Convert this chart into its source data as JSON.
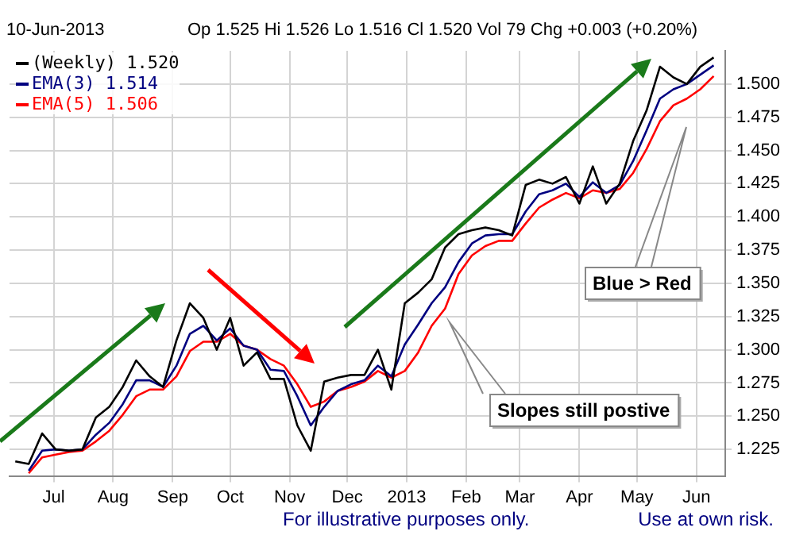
{
  "chart_data": {
    "type": "line",
    "title": "10-Jun-2013",
    "subtitle": "Op 1.525 Hi 1.526 Lo 1.516 Cl 1.520 Vol 79 Chg +0.003 (+0.20%)",
    "x": [
      "2012-06-11",
      "2012-06-18",
      "2012-06-25",
      "2012-07-02",
      "2012-07-09",
      "2012-07-16",
      "2012-07-23",
      "2012-07-30",
      "2012-08-06",
      "2012-08-13",
      "2012-08-20",
      "2012-08-27",
      "2012-09-03",
      "2012-09-10",
      "2012-09-17",
      "2012-09-24",
      "2012-10-01",
      "2012-10-08",
      "2012-10-15",
      "2012-10-22",
      "2012-10-29",
      "2012-11-05",
      "2012-11-12",
      "2012-11-19",
      "2012-11-26",
      "2012-12-03",
      "2012-12-10",
      "2012-12-17",
      "2012-12-24",
      "2012-12-31",
      "2013-01-07",
      "2013-01-14",
      "2013-01-21",
      "2013-01-28",
      "2013-02-04",
      "2013-02-11",
      "2013-02-18",
      "2013-02-25",
      "2013-03-04",
      "2013-03-11",
      "2013-03-18",
      "2013-03-25",
      "2013-04-01",
      "2013-04-08",
      "2013-04-15",
      "2013-04-22",
      "2013-04-29",
      "2013-05-06",
      "2013-05-13",
      "2013-05-20",
      "2013-05-27",
      "2013-06-03",
      "2013-06-10"
    ],
    "series": [
      {
        "name": "(Weekly) 1.520",
        "color": "#000000",
        "values": [
          1.216,
          1.214,
          1.237,
          1.225,
          1.224,
          1.225,
          1.249,
          1.257,
          1.272,
          1.292,
          1.28,
          1.272,
          1.307,
          1.335,
          1.324,
          1.3,
          1.324,
          1.288,
          1.298,
          1.278,
          1.278,
          1.243,
          1.224,
          1.276,
          1.279,
          1.281,
          1.281,
          1.3,
          1.27,
          1.335,
          1.343,
          1.353,
          1.377,
          1.387,
          1.39,
          1.392,
          1.39,
          1.386,
          1.424,
          1.428,
          1.425,
          1.43,
          1.41,
          1.438,
          1.41,
          1.425,
          1.457,
          1.48,
          1.513,
          1.505,
          1.5,
          1.513,
          1.52
        ]
      },
      {
        "name": "EMA(3) 1.514",
        "color": "#000080",
        "values": [
          null,
          1.209,
          1.224,
          1.225,
          1.224,
          1.225,
          1.236,
          1.245,
          1.259,
          1.277,
          1.277,
          1.272,
          1.288,
          1.312,
          1.318,
          1.307,
          1.316,
          1.303,
          1.3,
          1.285,
          1.284,
          1.265,
          1.243,
          1.257,
          1.269,
          1.274,
          1.277,
          1.288,
          1.28,
          1.304,
          1.319,
          1.335,
          1.347,
          1.366,
          1.38,
          1.386,
          1.387,
          1.387,
          1.404,
          1.417,
          1.42,
          1.425,
          1.415,
          1.426,
          1.418,
          1.424,
          1.442,
          1.465,
          1.489,
          1.496,
          1.5,
          1.507,
          1.514
        ]
      },
      {
        "name": "EMA(5) 1.506",
        "color": "#ff0000",
        "values": [
          null,
          1.207,
          1.219,
          1.221,
          1.223,
          1.224,
          1.231,
          1.239,
          1.251,
          1.265,
          1.27,
          1.27,
          1.28,
          1.299,
          1.306,
          1.306,
          1.312,
          1.303,
          1.3,
          1.293,
          1.288,
          1.274,
          1.257,
          1.261,
          1.269,
          1.272,
          1.276,
          1.284,
          1.279,
          1.284,
          1.298,
          1.318,
          1.331,
          1.357,
          1.371,
          1.378,
          1.382,
          1.382,
          1.395,
          1.407,
          1.413,
          1.418,
          1.414,
          1.42,
          1.418,
          1.421,
          1.433,
          1.451,
          1.472,
          1.484,
          1.489,
          1.496,
          1.506
        ]
      }
    ],
    "xlim": [
      "2012-06-08",
      "2013-06-16"
    ],
    "xticks": [
      {
        "value": "2012-07-01",
        "label": "Jul"
      },
      {
        "value": "2012-08-01",
        "label": "Aug"
      },
      {
        "value": "2012-09-01",
        "label": "Sep"
      },
      {
        "value": "2012-10-01",
        "label": "Oct"
      },
      {
        "value": "2012-11-01",
        "label": "Nov"
      },
      {
        "value": "2012-12-01",
        "label": "Dec"
      },
      {
        "value": "2013-01-01",
        "label": "2013"
      },
      {
        "value": "2013-02-01",
        "label": "Feb"
      },
      {
        "value": "2013-03-01",
        "label": "Mar"
      },
      {
        "value": "2013-04-01",
        "label": "Apr"
      },
      {
        "value": "2013-05-01",
        "label": "May"
      },
      {
        "value": "2013-06-01",
        "label": "Jun"
      }
    ],
    "ylim": [
      1.205,
      1.525
    ],
    "yticks": [
      {
        "value": 1.225,
        "label": "1.225"
      },
      {
        "value": 1.25,
        "label": "1.250"
      },
      {
        "value": 1.275,
        "label": "1.275"
      },
      {
        "value": 1.3,
        "label": "1.300"
      },
      {
        "value": 1.325,
        "label": "1.325"
      },
      {
        "value": 1.35,
        "label": "1.350"
      },
      {
        "value": 1.375,
        "label": "1.375"
      },
      {
        "value": 1.4,
        "label": "1.400"
      },
      {
        "value": 1.425,
        "label": "1.425"
      },
      {
        "value": 1.45,
        "label": "1.450"
      },
      {
        "value": 1.475,
        "label": "1.475"
      },
      {
        "value": 1.5,
        "label": "1.500"
      }
    ],
    "grid": true,
    "legend": "top left",
    "marker": "none",
    "line_style": "solid",
    "annotations": [
      "Slopes still postive",
      "Blue > Red",
      "For illustrative purposes only.",
      "Use at own risk."
    ]
  }
}
